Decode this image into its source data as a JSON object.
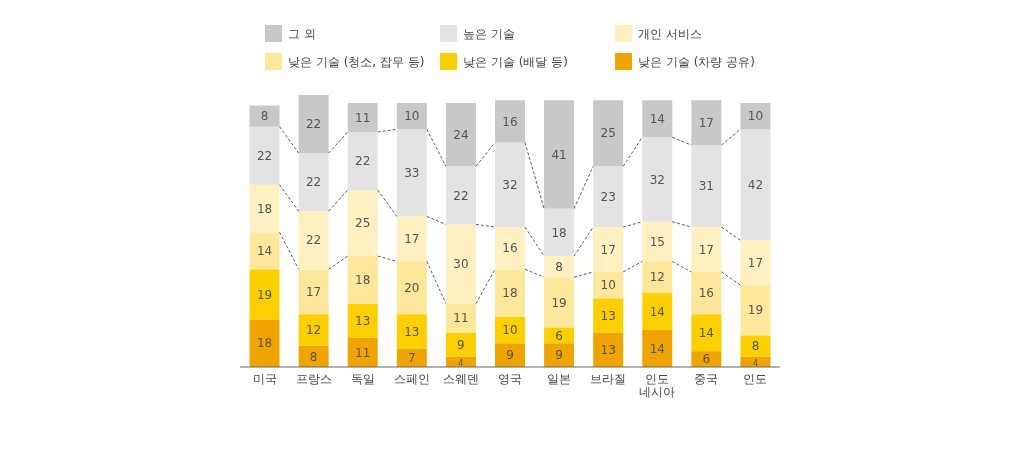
{
  "chart_data": {
    "type": "bar",
    "stacked": true,
    "data_labels": true,
    "legend": "top",
    "categories": [
      "미국",
      "프랑스",
      "독일",
      "스페인",
      "스웨덴",
      "영국",
      "일본",
      "브라질",
      "인도\n네시아",
      "중국",
      "인도"
    ],
    "series": [
      {
        "name": "낮은 기술 (차량 공유)",
        "color": "#f0a400",
        "values": [
          18,
          8,
          11,
          7,
          4,
          9,
          9,
          13,
          14,
          6,
          4
        ]
      },
      {
        "name": "낮은 기술 (배달 등)",
        "color": "#fccf00",
        "values": [
          19,
          12,
          13,
          13,
          9,
          10,
          6,
          13,
          14,
          14,
          8
        ]
      },
      {
        "name": "낮은 기술 (청소, 잡무 등)",
        "color": "#fde79a",
        "values": [
          14,
          17,
          18,
          20,
          11,
          18,
          19,
          10,
          12,
          16,
          19
        ]
      },
      {
        "name": "개인 서비스",
        "color": "#fff0c2",
        "values": [
          18,
          22,
          25,
          17,
          30,
          16,
          8,
          17,
          15,
          17,
          17
        ]
      },
      {
        "name": "높은 기술",
        "color": "#e3e3e3",
        "values": [
          22,
          22,
          22,
          33,
          22,
          32,
          18,
          23,
          32,
          31,
          42
        ]
      },
      {
        "name": "그 외",
        "color": "#c8c8c8",
        "values": [
          8,
          22,
          11,
          10,
          24,
          16,
          41,
          25,
          14,
          17,
          10
        ]
      }
    ]
  }
}
